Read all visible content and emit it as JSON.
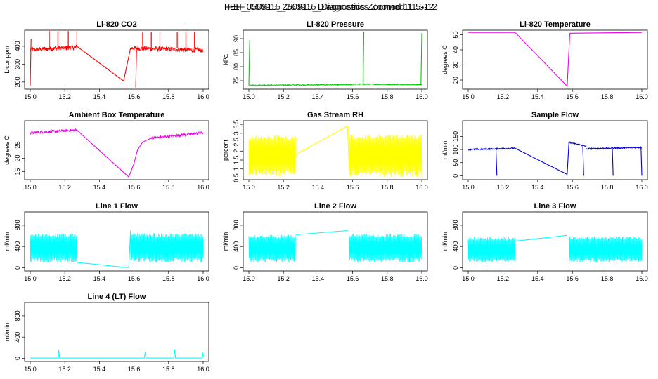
{
  "figure": {
    "title": "FEF_050915_250915_Diagnostics Zoomed 11.5-12",
    "title_overlap": "FEF_050915_250915_Diagnostics Zoomed 11.5-12"
  },
  "chart_data": [
    {
      "id": "li820-co2",
      "type": "line",
      "title": "Li-820 CO2",
      "ylabel": "Licor ppm",
      "xlabel": "",
      "color": "#ff0000",
      "xlim": [
        15.0,
        16.0
      ],
      "ylim": [
        160,
        490
      ],
      "xticks": [
        15.0,
        15.2,
        15.4,
        15.6,
        15.8,
        16.0
      ],
      "yticks": [
        200,
        300,
        400
      ],
      "noisy_segments": [
        {
          "x": [
            15.0,
            15.27
          ],
          "base": [
            380,
            395
          ],
          "noise": 25,
          "spikes": [
            15.11,
            15.16,
            15.22,
            15.27
          ],
          "spike_to": 485
        },
        {
          "x": [
            15.58,
            16.0
          ],
          "base": [
            390,
            378
          ],
          "noise": 25,
          "spikes": [
            15.65,
            15.7,
            15.75,
            15.85,
            15.9,
            15.95
          ],
          "spike_to": 480
        }
      ],
      "lines": [
        {
          "x": [
            15.27,
            15.54
          ],
          "y": [
            400,
            205
          ]
        },
        {
          "x": [
            15.54,
            15.58
          ],
          "y": [
            205,
            390
          ]
        },
        {
          "x": [
            15.0,
            15.005
          ],
          "y": [
            180,
            440
          ]
        },
        {
          "x": [
            15.61,
            15.615
          ],
          "y": [
            170,
            390
          ]
        }
      ]
    },
    {
      "id": "li820-pressure",
      "type": "line",
      "title": "Li-820 Pressure",
      "ylabel": "kPa",
      "xlabel": "",
      "color": "#00cc00",
      "xlim": [
        15.0,
        16.0
      ],
      "ylim": [
        72,
        93
      ],
      "xticks": [
        15.0,
        15.2,
        15.4,
        15.6,
        15.8,
        16.0
      ],
      "yticks": [
        75,
        80,
        85,
        90
      ],
      "noisy_segments": [
        {
          "x": [
            15.0,
            15.6
          ],
          "base": [
            73.4,
            73.6
          ],
          "noise": 0.3,
          "spikes": [],
          "spike_to": 0
        },
        {
          "x": [
            15.6,
            16.0
          ],
          "base": [
            73.8,
            73.6
          ],
          "noise": 0.3,
          "spikes": [],
          "spike_to": 0
        }
      ],
      "lines": [
        {
          "x": [
            15.0,
            15.005
          ],
          "y": [
            73.5,
            89.5
          ]
        },
        {
          "x": [
            15.66,
            15.665
          ],
          "y": [
            73.8,
            92.5
          ]
        },
        {
          "x": [
            15.995,
            16.0
          ],
          "y": [
            73.6,
            92.0
          ]
        }
      ]
    },
    {
      "id": "li820-temperature",
      "type": "line",
      "title": "Li-820 Temperature",
      "ylabel": "degrees C",
      "xlabel": "",
      "color": "#ee00ee",
      "xlim": [
        15.0,
        16.0
      ],
      "ylim": [
        14,
        53
      ],
      "xticks": [
        15.0,
        15.2,
        15.4,
        15.6,
        15.8,
        16.0
      ],
      "yticks": [
        20,
        30,
        40,
        50
      ],
      "noisy_segments": [],
      "lines": [
        {
          "x": [
            15.0,
            15.27
          ],
          "y": [
            51.5,
            51.5
          ]
        },
        {
          "x": [
            15.27,
            15.57
          ],
          "y": [
            51.5,
            16
          ]
        },
        {
          "x": [
            15.57,
            15.585
          ],
          "y": [
            16,
            51.0
          ]
        },
        {
          "x": [
            15.585,
            16.0
          ],
          "y": [
            51.0,
            51.5
          ]
        }
      ]
    },
    {
      "id": "ambient-box-temperature",
      "type": "line",
      "title": "Ambient Box Temperature",
      "ylabel": "degrees C",
      "xlabel": "",
      "color": "#ee00ee",
      "xlim": [
        15.0,
        16.0
      ],
      "ylim": [
        12,
        34
      ],
      "xticks": [
        15.0,
        15.2,
        15.4,
        15.6,
        15.8,
        16.0
      ],
      "yticks": [
        15,
        20,
        25
      ],
      "noisy_segments": [
        {
          "x": [
            15.0,
            15.27
          ],
          "base": [
            29.5,
            30.5
          ],
          "noise": 1.0,
          "spikes": [],
          "spike_to": 0
        },
        {
          "x": [
            15.7,
            16.0
          ],
          "base": [
            27.5,
            29.5
          ],
          "noise": 1.0,
          "spikes": [],
          "spike_to": 0
        }
      ],
      "lines": [
        {
          "x": [
            15.27,
            15.57
          ],
          "y": [
            30.5,
            13
          ]
        },
        {
          "x": [
            15.57,
            15.6,
            15.62,
            15.65,
            15.7
          ],
          "y": [
            13,
            18,
            23,
            26,
            27.5
          ]
        }
      ]
    },
    {
      "id": "gas-stream-rh",
      "type": "line",
      "title": "Gas Stream RH",
      "ylabel": "percent",
      "xlabel": "",
      "color": "#ffff00",
      "xlim": [
        15.0,
        16.0
      ],
      "ylim": [
        0.4,
        3.7
      ],
      "xticks": [
        15.0,
        15.2,
        15.4,
        15.6,
        15.8,
        16.0
      ],
      "yticks": [
        0.5,
        1.0,
        1.5,
        2.0,
        2.5,
        3.0,
        3.5
      ],
      "noisy_segments": [
        {
          "x": [
            15.0,
            15.27
          ],
          "band": [
            0.6,
            2.9
          ]
        },
        {
          "x": [
            15.58,
            16.0
          ],
          "band": [
            0.55,
            2.95
          ]
        }
      ],
      "lines": [
        {
          "x": [
            15.27,
            15.57
          ],
          "y": [
            1.8,
            3.4
          ]
        },
        {
          "x": [
            15.57,
            15.58
          ],
          "y": [
            3.4,
            1.0
          ]
        }
      ]
    },
    {
      "id": "sample-flow",
      "type": "line",
      "title": "Sample Flow",
      "ylabel": "ml/min",
      "xlabel": "",
      "color": "#0000dd",
      "xlim": [
        15.0,
        16.0
      ],
      "ylim": [
        -15,
        210
      ],
      "xticks": [
        15.0,
        15.2,
        15.4,
        15.6,
        15.8,
        16.0
      ],
      "yticks": [
        0,
        50,
        100,
        150
      ],
      "noisy_segments": [
        {
          "x": [
            15.0,
            15.27
          ],
          "base": [
            100,
            105
          ],
          "noise": 5,
          "spikes": [],
          "spike_to": 0
        },
        {
          "x": [
            15.58,
            15.68
          ],
          "base": [
            128,
            112
          ],
          "noise": 6,
          "spikes": [],
          "spike_to": 0
        },
        {
          "x": [
            15.68,
            16.0
          ],
          "base": [
            103,
            108
          ],
          "noise": 5,
          "spikes": [],
          "spike_to": 0
        }
      ],
      "lines": [
        {
          "x": [
            15.27,
            15.57
          ],
          "y": [
            105,
            5
          ]
        },
        {
          "x": [
            15.57,
            15.58
          ],
          "y": [
            5,
            128
          ]
        },
        {
          "x": [
            15.16,
            15.165
          ],
          "y": [
            100,
            0
          ]
        },
        {
          "x": [
            15.66,
            15.665
          ],
          "y": [
            112,
            0
          ]
        },
        {
          "x": [
            15.83,
            15.835
          ],
          "y": [
            103,
            0
          ]
        },
        {
          "x": [
            15.995,
            16.0
          ],
          "y": [
            108,
            0
          ]
        }
      ]
    },
    {
      "id": "line-1-flow",
      "type": "line",
      "title": "Line 1 Flow",
      "ylabel": "ml/min",
      "xlabel": "",
      "color": "#00ffff",
      "xlim": [
        15.0,
        16.0
      ],
      "ylim": [
        -60,
        1050
      ],
      "xticks": [
        15.0,
        15.2,
        15.4,
        15.6,
        15.8,
        16.0
      ],
      "yticks": [
        0,
        400,
        800
      ],
      "noisy_segments": [
        {
          "x": [
            15.0,
            15.27
          ],
          "band": [
            100,
            650
          ]
        },
        {
          "x": [
            15.58,
            16.0
          ],
          "band": [
            100,
            650
          ]
        }
      ],
      "lines": [
        {
          "x": [
            15.27,
            15.57
          ],
          "y": [
            100,
            0
          ]
        },
        {
          "x": [
            15.57,
            15.58
          ],
          "y": [
            0,
            700
          ]
        }
      ]
    },
    {
      "id": "line-2-flow",
      "type": "line",
      "title": "Line 2 Flow",
      "ylabel": "ml/min",
      "xlabel": "",
      "color": "#00ffff",
      "xlim": [
        15.0,
        16.0
      ],
      "ylim": [
        -60,
        1050
      ],
      "xticks": [
        15.0,
        15.2,
        15.4,
        15.6,
        15.8,
        16.0
      ],
      "yticks": [
        0,
        400,
        800
      ],
      "noisy_segments": [
        {
          "x": [
            15.0,
            15.27
          ],
          "band": [
            100,
            620
          ]
        },
        {
          "x": [
            15.58,
            16.0
          ],
          "band": [
            100,
            640
          ]
        }
      ],
      "lines": [
        {
          "x": [
            15.27,
            15.57
          ],
          "y": [
            620,
            700
          ]
        }
      ]
    },
    {
      "id": "line-3-flow",
      "type": "line",
      "title": "Line 3 Flow",
      "ylabel": "ml/min",
      "xlabel": "",
      "color": "#00ffff",
      "xlim": [
        15.0,
        16.0
      ],
      "ylim": [
        -60,
        1050
      ],
      "xticks": [
        15.0,
        15.2,
        15.4,
        15.6,
        15.8,
        16.0
      ],
      "yticks": [
        0,
        400,
        800
      ],
      "noisy_segments": [
        {
          "x": [
            15.0,
            15.27
          ],
          "band": [
            100,
            580
          ]
        },
        {
          "x": [
            15.58,
            16.0
          ],
          "band": [
            100,
            590
          ]
        }
      ],
      "lines": [
        {
          "x": [
            15.27,
            15.57
          ],
          "y": [
            500,
            610
          ]
        }
      ]
    },
    {
      "id": "line-4-lt-flow",
      "type": "line",
      "title": "Line 4 (LT) Flow",
      "ylabel": "ml/min",
      "xlabel": "",
      "color": "#00ffff",
      "xlim": [
        15.0,
        16.0
      ],
      "ylim": [
        -60,
        1050
      ],
      "xticks": [
        15.0,
        15.2,
        15.4,
        15.6,
        15.8,
        16.0
      ],
      "yticks": [
        0,
        400,
        800
      ],
      "noisy_segments": [],
      "lines": [
        {
          "x": [
            15.0,
            15.16,
            15.165,
            15.17,
            15.66,
            15.665,
            15.67,
            15.83,
            15.835,
            15.84,
            15.995,
            16.0
          ],
          "y": [
            5,
            5,
            160,
            5,
            5,
            120,
            5,
            5,
            170,
            5,
            5,
            110
          ]
        }
      ]
    }
  ]
}
